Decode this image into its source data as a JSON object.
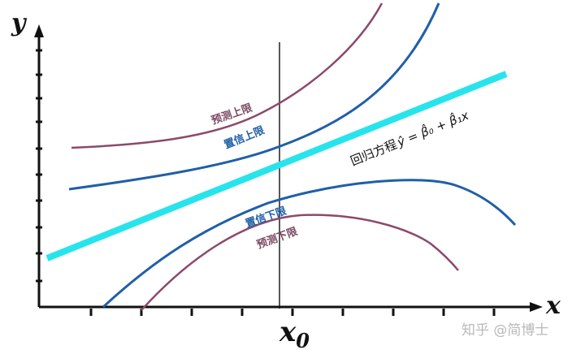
{
  "axes": {
    "x_label": "x",
    "y_label": "y",
    "x0_label": "x",
    "x0_subscript": "0"
  },
  "curves": {
    "prediction_upper_label": "预测上限",
    "confidence_upper_label": "置信上限",
    "confidence_lower_label": "置信下限",
    "prediction_lower_label": "预测下限",
    "regression_label_cn": "回归方程",
    "regression_formula": "ŷ = β̂₀ + β̂₁x"
  },
  "watermark": "知乎 @简博士",
  "colors": {
    "prediction_band": "#8b4a6b",
    "confidence_band": "#1f5fa8",
    "regression_line": "#27e4ec",
    "axis": "#111111",
    "prediction_text": "#7a4a63",
    "confidence_text": "#1f5fa8"
  }
}
